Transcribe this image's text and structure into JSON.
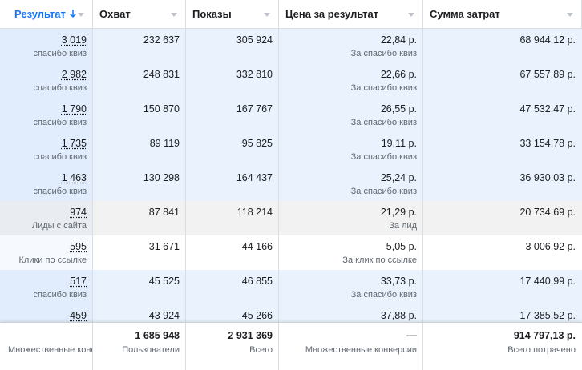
{
  "header": {
    "columns": [
      "Результат",
      "Охват",
      "Показы",
      "Цена за результат",
      "Сумма затрат"
    ]
  },
  "table": {
    "rows": [
      {
        "background": "#eaf3fd",
        "result": "3 019",
        "result_label": "спасибо квиз",
        "reach": "232 637",
        "impressions": "305 924",
        "cost": "22,84 р.",
        "cost_label": "За спасибо квиз",
        "spend": "68 944,12 р."
      },
      {
        "background": "#eaf3fd",
        "result": "2 982",
        "result_label": "спасибо квиз",
        "reach": "248 831",
        "impressions": "332 810",
        "cost": "22,66 р.",
        "cost_label": "За спасибо квиз",
        "spend": "67 557,89 р."
      },
      {
        "background": "#eaf3fd",
        "result": "1 790",
        "result_label": "спасибо квиз",
        "reach": "150 870",
        "impressions": "167 767",
        "cost": "26,55 р.",
        "cost_label": "За спасибо квиз",
        "spend": "47 532,47 р."
      },
      {
        "background": "#eaf3fd",
        "result": "1 735",
        "result_label": "спасибо квиз",
        "reach": "89 119",
        "impressions": "95 825",
        "cost": "19,11 р.",
        "cost_label": "За спасибо квиз",
        "spend": "33 154,78 р."
      },
      {
        "background": "#eaf3fd",
        "result": "1 463",
        "result_label": "спасибо квиз",
        "reach": "130 298",
        "impressions": "164 437",
        "cost": "25,24 р.",
        "cost_label": "За спасибо квиз",
        "spend": "36 930,03 р."
      },
      {
        "background": "#f2f2f2",
        "result": "974",
        "result_label": "Лиды с сайта",
        "reach": "87 841",
        "impressions": "118 214",
        "cost": "21,29 р.",
        "cost_label": "За лид",
        "spend": "20 734,69 р."
      },
      {
        "background": "#ffffff",
        "result": "595",
        "result_label": "Клики по ссылке",
        "reach": "31 671",
        "impressions": "44 166",
        "cost": "5,05 р.",
        "cost_label": "За клик по ссылке",
        "spend": "3 006,92 р."
      },
      {
        "background": "#eaf3fd",
        "result": "517",
        "result_label": "спасибо квиз",
        "reach": "45 525",
        "impressions": "46 855",
        "cost": "33,73 р.",
        "cost_label": "За спасибо квиз",
        "spend": "17 440,99 р."
      },
      {
        "background": "#eaf3fd",
        "result": "459",
        "reach": "43 924",
        "impressions": "45 266",
        "cost": "37,88 р.",
        "spend": "17 385,52 р."
      }
    ]
  },
  "footer": {
    "cells": [
      {
        "label": "Множественные коне"
      },
      {
        "value": "1 685 948",
        "label": "Пользователи"
      },
      {
        "value": "2 931 369",
        "label": "Всего"
      },
      {
        "value": "—",
        "label": "Множественные конверсии"
      },
      {
        "value": "914 797,13 р.",
        "label": "Всего потрачено"
      }
    ]
  }
}
